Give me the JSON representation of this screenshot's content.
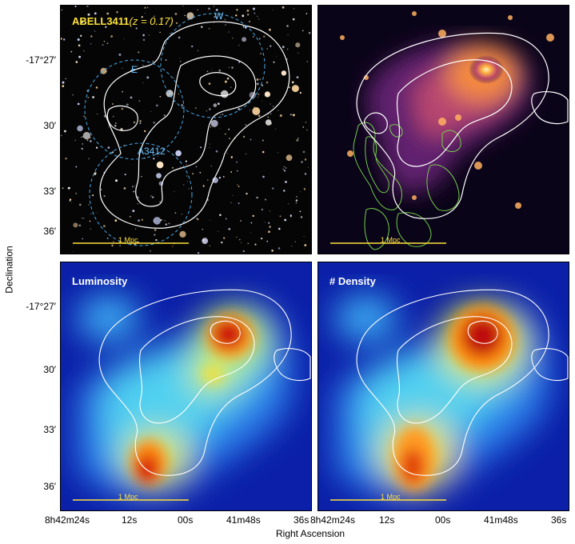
{
  "panels": {
    "optical": {
      "cluster_name": "ABELL3411",
      "redshift": "(z = 0.17)",
      "labels": {
        "west": "W",
        "east": "E",
        "a3412": "A3412"
      },
      "scale_bar": "1 Mpc"
    },
    "xray": {
      "scale_bar": "1 Mpc"
    },
    "luminosity": {
      "title": "Luminosity",
      "scale_bar": "1 Mpc"
    },
    "density": {
      "title": "# Density",
      "scale_bar": "1 Mpc"
    }
  },
  "axes": {
    "ylabel": "Declination",
    "xlabel": "Right Ascension",
    "yticks_top": [
      "-17°27′",
      "30′",
      "33′",
      "36′"
    ],
    "yticks_bottom": [
      "-17°27′",
      "30′",
      "33′",
      "36′"
    ],
    "xticks_left": [
      "8h42m24s",
      "12s",
      "00s",
      "41m48s",
      "36s"
    ],
    "xticks_right": [
      "8h42m24s",
      "12s",
      "00s",
      "41m48s",
      "36s"
    ]
  },
  "colors": {
    "contour": "#ffffff",
    "radio_contour": "#7be04a",
    "circle": "#4aa8e8",
    "scale_bar": "#ffe23a",
    "title_yellow": "#ffe23a"
  }
}
